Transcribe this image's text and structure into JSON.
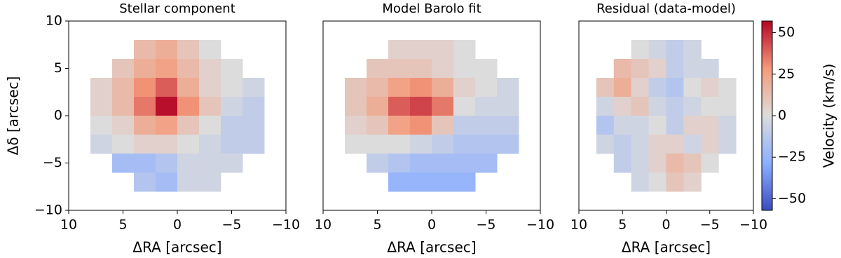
{
  "chart_data": [
    {
      "type": "heatmap",
      "title": "Stellar component",
      "xlabel": "ΔRA [arcsec]",
      "ylabel": "Δδ [arcsec]",
      "xlim": [
        10,
        -10
      ],
      "ylim": [
        -10,
        10
      ],
      "xticks": [
        10,
        5,
        0,
        {
          "value": -5,
          "label": "−5"
        },
        {
          "value": -10,
          "label": "−10"
        }
      ],
      "yticks": [
        10,
        5,
        0,
        {
          "value": -5,
          "label": "−5"
        },
        {
          "value": -10,
          "label": "−10"
        }
      ],
      "x": [
        7,
        5,
        3,
        1,
        -1,
        -3,
        -5,
        -7
      ],
      "y": [
        7,
        5,
        3,
        1,
        -1,
        -3,
        -5,
        -7
      ],
      "values": [
        [
          null,
          null,
          15,
          20,
          10,
          0,
          null,
          null
        ],
        [
          null,
          10,
          20,
          25,
          15,
          5,
          0,
          null
        ],
        [
          5,
          15,
          30,
          40,
          20,
          5,
          0,
          -5
        ],
        [
          5,
          15,
          35,
          55,
          30,
          10,
          -5,
          -10
        ],
        [
          0,
          5,
          20,
          25,
          10,
          0,
          -10,
          -10
        ],
        [
          -5,
          0,
          5,
          5,
          0,
          -5,
          -10,
          -10
        ],
        [
          null,
          -20,
          -20,
          -15,
          -5,
          -5,
          -5,
          null
        ],
        [
          null,
          null,
          -15,
          -20,
          -5,
          -5,
          null,
          null
        ]
      ]
    },
    {
      "type": "heatmap",
      "title": "Model Barolo fit",
      "xlabel": "ΔRA [arcsec]",
      "xlim": [
        10,
        -10
      ],
      "ylim": [
        -10,
        10
      ],
      "xticks": [
        10,
        5,
        0,
        {
          "value": -5,
          "label": "−5"
        },
        {
          "value": -10,
          "label": "−10"
        }
      ],
      "x": [
        7,
        5,
        3,
        1,
        -1,
        -3,
        -5,
        -7
      ],
      "y": [
        7,
        5,
        3,
        1,
        -1,
        -3,
        -5,
        -7
      ],
      "values": [
        [
          null,
          null,
          5,
          5,
          5,
          0,
          null,
          null
        ],
        [
          null,
          10,
          10,
          10,
          5,
          0,
          0,
          null
        ],
        [
          10,
          15,
          25,
          30,
          20,
          5,
          0,
          -5
        ],
        [
          10,
          20,
          40,
          45,
          35,
          0,
          -5,
          -5
        ],
        [
          5,
          10,
          25,
          30,
          10,
          -10,
          -10,
          -10
        ],
        [
          0,
          0,
          0,
          -5,
          -10,
          -15,
          -15,
          -15
        ],
        [
          null,
          -10,
          -15,
          -20,
          -20,
          -20,
          -20,
          null
        ],
        [
          null,
          null,
          -25,
          -25,
          -25,
          -25,
          null,
          null
        ]
      ]
    },
    {
      "type": "heatmap",
      "title": "Residual (data-model)",
      "xlabel": "ΔRA [arcsec]",
      "xlim": [
        10,
        -10
      ],
      "ylim": [
        -10,
        10
      ],
      "xticks": [
        10,
        5,
        0,
        {
          "value": -5,
          "label": "−5"
        },
        {
          "value": -10,
          "label": "−10"
        }
      ],
      "x": [
        7,
        5,
        3,
        1,
        -1,
        -3,
        -5,
        -7
      ],
      "y": [
        7,
        5,
        3,
        1,
        -1,
        -3,
        -5,
        -7
      ],
      "values": [
        [
          null,
          null,
          0,
          -5,
          -10,
          -5,
          null,
          null
        ],
        [
          null,
          15,
          10,
          5,
          -10,
          -5,
          -5,
          null
        ],
        [
          10,
          20,
          5,
          -10,
          -15,
          0,
          5,
          0
        ],
        [
          -5,
          5,
          10,
          -5,
          -10,
          -5,
          0,
          0
        ],
        [
          -15,
          -5,
          -5,
          0,
          -10,
          5,
          5,
          -5
        ],
        [
          -5,
          -10,
          -5,
          5,
          5,
          -5,
          5,
          -5
        ],
        [
          null,
          -10,
          -5,
          5,
          15,
          10,
          0,
          null
        ],
        [
          null,
          null,
          -5,
          0,
          10,
          5,
          null,
          null
        ]
      ]
    }
  ],
  "colorbar": {
    "label": "Velocity (km/s)",
    "lim": [
      -57,
      57
    ],
    "ticks": [
      50,
      25,
      0,
      {
        "value": -25,
        "label": "−25"
      },
      {
        "value": -50,
        "label": "−50"
      }
    ],
    "colormap": [
      "#3b4cc0",
      "#8db0fe",
      "#dddcdc",
      "#f49a7b",
      "#b40426"
    ]
  }
}
